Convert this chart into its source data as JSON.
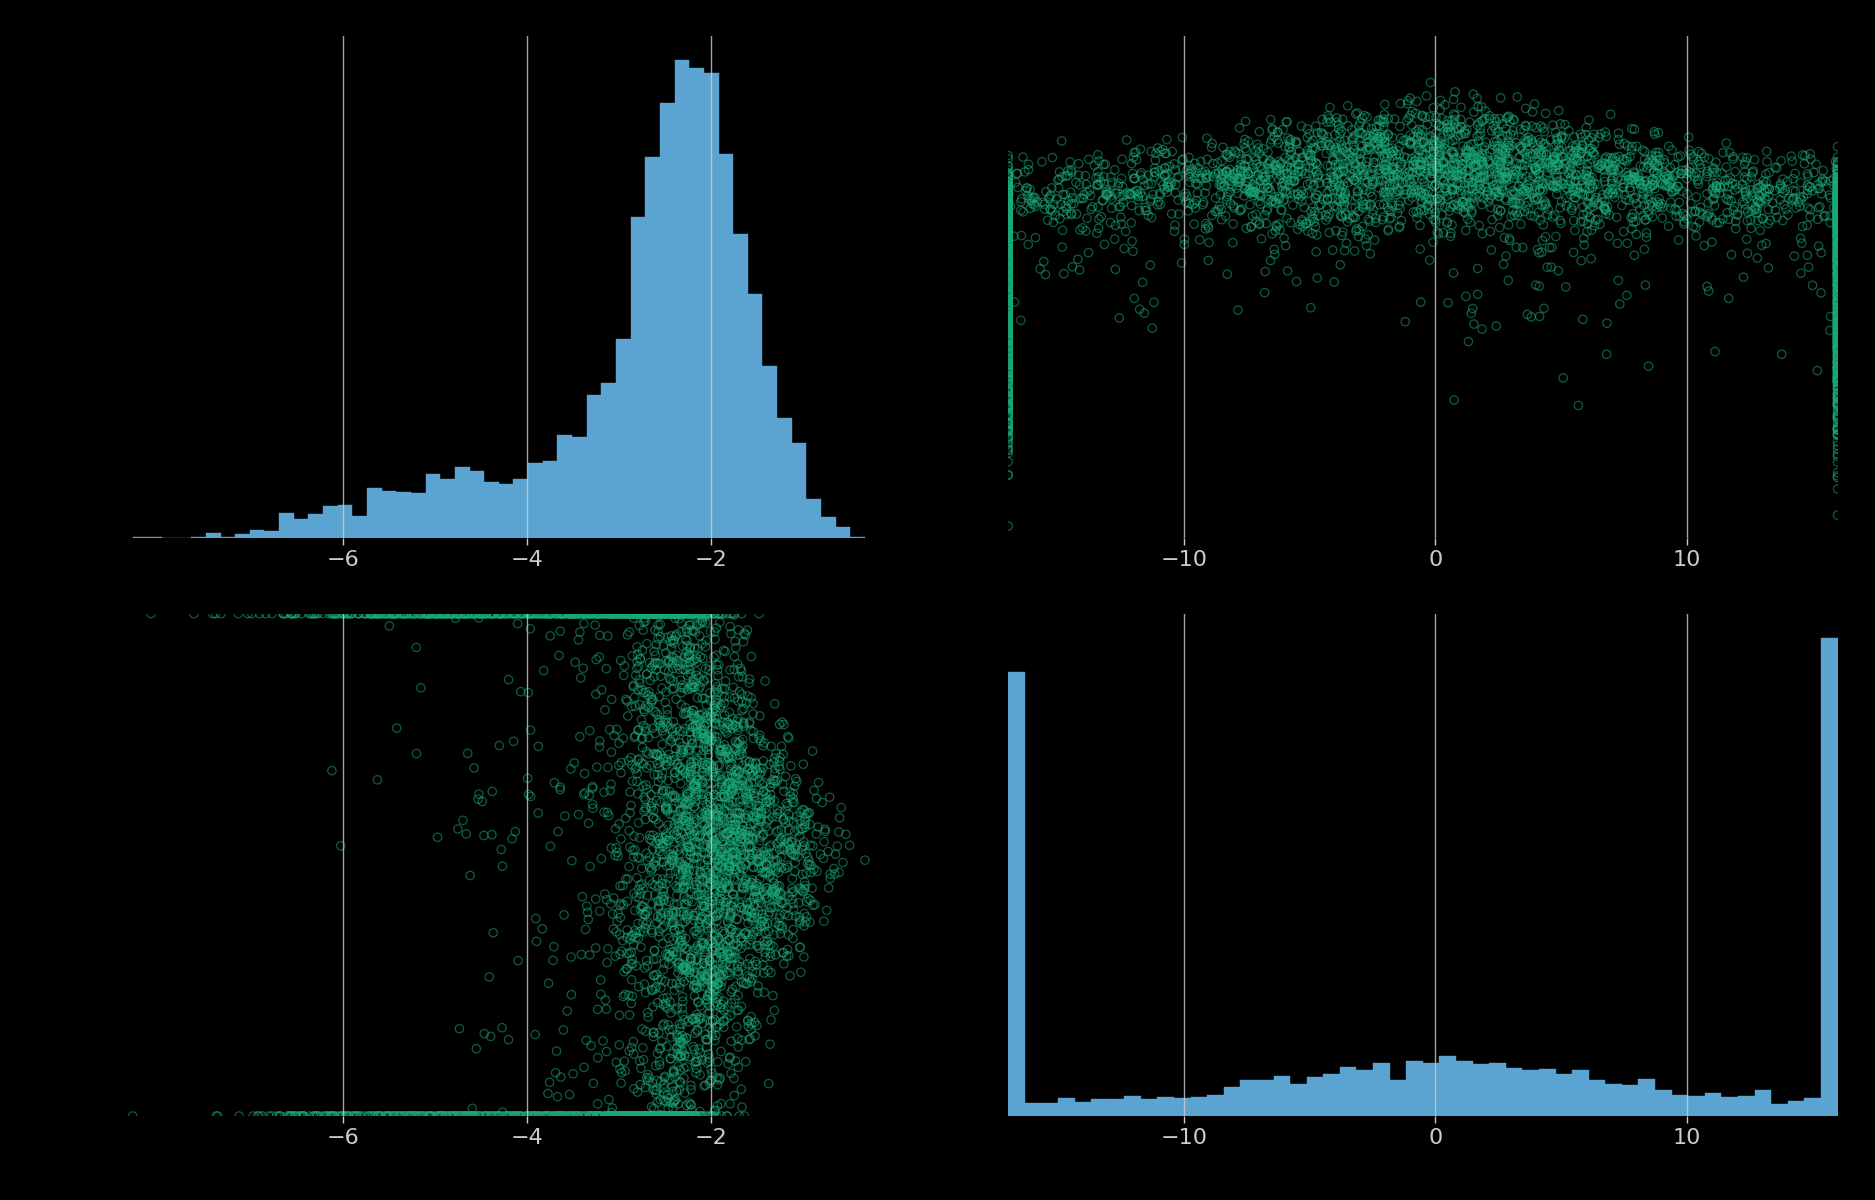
{
  "background_color": "#000000",
  "panel_color": "#111111",
  "grid_color": "#cccccc",
  "hist1_color": "#5ba3d0",
  "hist2_color": "#5ba3d0",
  "scatter_edge_color": "#1aaa77",
  "scatter_face_color": "none",
  "hist1_xlim": [
    -8.5,
    0.5
  ],
  "hist2_xlim": [
    -17,
    16
  ],
  "scatter_tr_xlim": [
    -17,
    16
  ],
  "scatter_tr_ylim": [
    -8.5,
    0.5
  ],
  "scatter_bl_xlim": [
    -8.5,
    0.5
  ],
  "scatter_bl_ylim": [
    -17,
    16
  ],
  "hist1_xticks": [
    -6,
    -4,
    -2
  ],
  "hist2_xticks": [
    -10,
    0,
    10
  ],
  "n_samples": 4000,
  "log_sigma_mode": -2.0,
  "logit_phi_mode": 0.5,
  "marker_size": 36,
  "marker_lw": 0.9,
  "scatter_alpha": 0.55,
  "hist_bins": 50,
  "figsize": [
    18.75,
    12.0
  ],
  "dpi": 100,
  "tick_fontsize": 16,
  "grid_lw": 1.0,
  "grid_alpha": 0.8,
  "subplot_hspace": 0.15,
  "subplot_wspace": 0.08
}
